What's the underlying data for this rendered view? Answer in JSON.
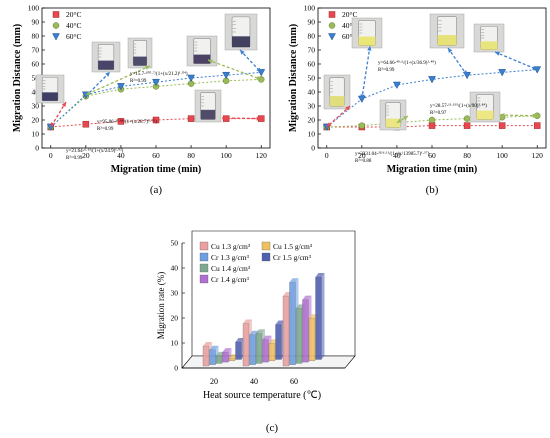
{
  "chart_data": [
    {
      "type": "scatter",
      "panel_label": "(a)",
      "xlabel": "Migration time (min)",
      "ylabel": "Migration Distance (mm)",
      "xlim": [
        -5,
        125
      ],
      "ylim": [
        0,
        100
      ],
      "xticks": [
        0,
        20,
        40,
        60,
        80,
        100,
        120
      ],
      "yticks": [
        0,
        10,
        20,
        30,
        40,
        50,
        60,
        70,
        80,
        90,
        100
      ],
      "legend_position": "top-left",
      "series": [
        {
          "name": "20°C",
          "color": "#e8474f",
          "marker": "square",
          "x": [
            0,
            20,
            40,
            60,
            80,
            100,
            120
          ],
          "y": [
            15,
            17,
            19,
            20,
            21,
            21,
            21
          ]
        },
        {
          "name": "40°C",
          "color": "#9bbb59",
          "marker": "circle",
          "x": [
            0,
            20,
            40,
            60,
            80,
            100,
            120
          ],
          "y": [
            15,
            37,
            42,
            44,
            46,
            48,
            49
          ]
        },
        {
          "name": "60°C",
          "color": "#3b7fd0",
          "marker": "triangle-down",
          "x": [
            0,
            20,
            40,
            60,
            80,
            100,
            120
          ],
          "y": [
            15,
            38,
            44,
            47,
            50,
            52,
            54
          ]
        }
      ],
      "annotations": [
        "y=15.7-¹⁰⁰·⁷/(1+(x/21.2)¹·⁰⁴)",
        "R²=0.99",
        "y=95.86-³⁵·⁸⁶/(1+(x/28.7)⁰·⁷⁵)",
        "R²=0.99",
        "y=21.64-⁶·⁶³/(1+(x/24.9)¹·⁹²)",
        "R²=0.99"
      ]
    },
    {
      "type": "scatter",
      "panel_label": "(b)",
      "xlabel": "Migration time (min)",
      "ylabel": "Migration Distance (mm)",
      "xlim": [
        -5,
        125
      ],
      "ylim": [
        0,
        100
      ],
      "xticks": [
        0,
        20,
        40,
        60,
        80,
        100,
        120
      ],
      "yticks": [
        0,
        10,
        20,
        30,
        40,
        50,
        60,
        70,
        80,
        90,
        100
      ],
      "legend_position": "top-left",
      "series": [
        {
          "name": "20°C",
          "color": "#e8474f",
          "marker": "square",
          "x": [
            0,
            20,
            40,
            60,
            80,
            100,
            120
          ],
          "y": [
            15,
            15,
            15,
            16,
            16,
            16,
            16
          ]
        },
        {
          "name": "40°C",
          "color": "#9bbb59",
          "marker": "circle",
          "x": [
            0,
            20,
            40,
            60,
            80,
            100,
            120
          ],
          "y": [
            15,
            16,
            18,
            20,
            21,
            22,
            23
          ]
        },
        {
          "name": "60°C",
          "color": "#3b7fd0",
          "marker": "triangle-down",
          "x": [
            0,
            20,
            40,
            60,
            80,
            100,
            120
          ],
          "y": [
            15,
            35,
            45,
            49,
            52,
            54,
            56
          ]
        }
      ],
      "annotations": [
        "y=64.66-⁴⁹·⁶/(1+(x/36.9)¹·⁴⁸)",
        "R²=0.99",
        "y=28.57-¹³·¹⁵⁵/(1+(x/90)¹·⁸⁴)",
        "R²=0.97",
        "y=3231.04-³²¹⁶·¹¹/(1+(x/13985.7)¹·⁵⁷)",
        "R²=0.88"
      ]
    },
    {
      "type": "bar",
      "panel_label": "(c)",
      "xlabel": "Heat source temperature (℃)",
      "ylabel": "Migration rate (%)",
      "ylim": [
        0,
        50
      ],
      "yticks": [
        0,
        10,
        20,
        30,
        40,
        50
      ],
      "categories": [
        "20",
        "40",
        "60"
      ],
      "legend_position": "top-left",
      "series": [
        {
          "name": "Cu 1.3 g/cm³",
          "color": "#e8a0a0",
          "values": [
            8,
            17,
            28
          ]
        },
        {
          "name": "Cr 1.3 g/cm³",
          "color": "#6f9fe0",
          "values": [
            6,
            12,
            33
          ]
        },
        {
          "name": "Cu 1.4 g/cm³",
          "color": "#7fa890",
          "values": [
            3,
            12,
            22
          ]
        },
        {
          "name": "Cr 1.4 g/cm³",
          "color": "#b070d0",
          "values": [
            4,
            9,
            25
          ]
        },
        {
          "name": "Cu 1.5 g/cm³",
          "color": "#f0c060",
          "values": [
            1,
            7,
            17
          ]
        },
        {
          "name": "Cr 1.5 g/cm³",
          "color": "#5060b0",
          "values": [
            7,
            14,
            33
          ]
        }
      ]
    }
  ]
}
